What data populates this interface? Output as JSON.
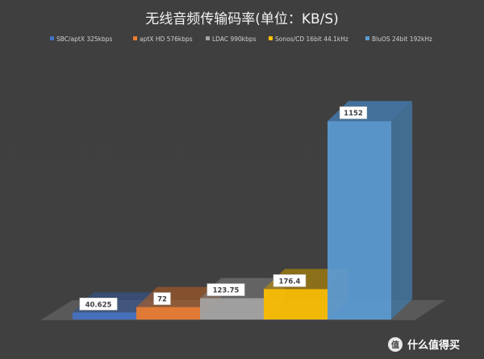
{
  "chart_data": {
    "type": "bar",
    "title": "无线音频传输码率(单位：KB/S)",
    "categories": [
      "SBC/aptX 325kbps",
      "aptX HD 576kbps",
      "LDAC 990kbps",
      "Sonos/CD 16bit 44.1kHz",
      "BluOS 24bit 192kHz"
    ],
    "values": [
      40.625,
      72,
      123.75,
      176.4,
      1152
    ],
    "data_labels": [
      "40.625",
      "72",
      "123.75",
      "176.4",
      "1152"
    ],
    "colors": [
      "#4472c4",
      "#ed7d31",
      "#a5a5a5",
      "#ffc000",
      "#5b9bd5"
    ],
    "legend_position": "top",
    "grid": false,
    "ylim": [
      0,
      1200
    ]
  },
  "watermark": {
    "badge": "值",
    "text": "什么值得买"
  }
}
